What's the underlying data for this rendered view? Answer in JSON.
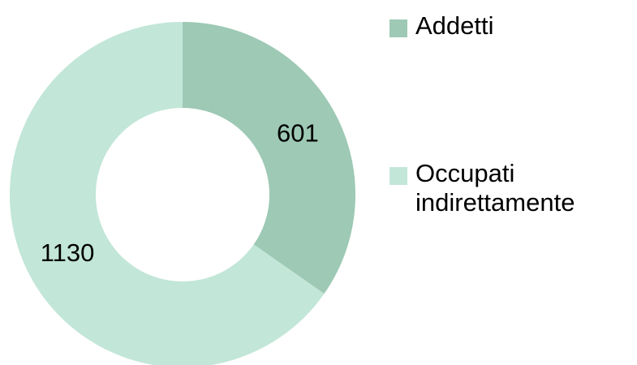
{
  "chart_data": {
    "type": "donut",
    "categories": [
      "Addetti",
      "Occupati indirettamente"
    ],
    "values": [
      601,
      1130
    ],
    "colors": [
      "#9dc9b5",
      "#c2e6d8"
    ],
    "legend": "right"
  }
}
